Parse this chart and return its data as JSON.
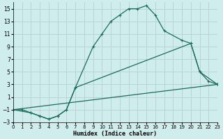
{
  "xlabel": "Humidex (Indice chaleur)",
  "background_color": "#d0eded",
  "grid_color": "#b8d4d4",
  "line_color": "#1a6b5a",
  "xlim": [
    0,
    23
  ],
  "ylim": [
    -3,
    16
  ],
  "xticks": [
    0,
    1,
    2,
    3,
    4,
    5,
    6,
    7,
    8,
    9,
    10,
    11,
    12,
    13,
    14,
    15,
    16,
    17,
    18,
    19,
    20,
    21,
    22,
    23
  ],
  "yticks": [
    -3,
    -1,
    1,
    3,
    5,
    7,
    9,
    11,
    13,
    15
  ],
  "curve1_x": [
    0,
    1,
    2,
    3,
    4,
    5,
    6,
    7,
    9,
    10,
    11,
    12,
    13,
    14,
    15,
    16,
    17,
    19,
    20,
    21,
    22,
    23
  ],
  "curve1_y": [
    -1,
    -1,
    -1.5,
    -2,
    -2.5,
    -2,
    -1,
    2.5,
    9,
    11,
    13,
    14,
    15,
    15,
    15.5,
    14,
    11.5,
    10,
    9.5,
    5,
    3.5,
    3
  ],
  "curve2_x": [
    0,
    2,
    3,
    4,
    5,
    6,
    7,
    20,
    21,
    23
  ],
  "curve2_y": [
    -1,
    -1.5,
    -2,
    -2.5,
    -2,
    -1,
    2.5,
    9.5,
    5,
    3
  ],
  "curve3_x": [
    0,
    23
  ],
  "curve3_y": [
    -1,
    3
  ]
}
